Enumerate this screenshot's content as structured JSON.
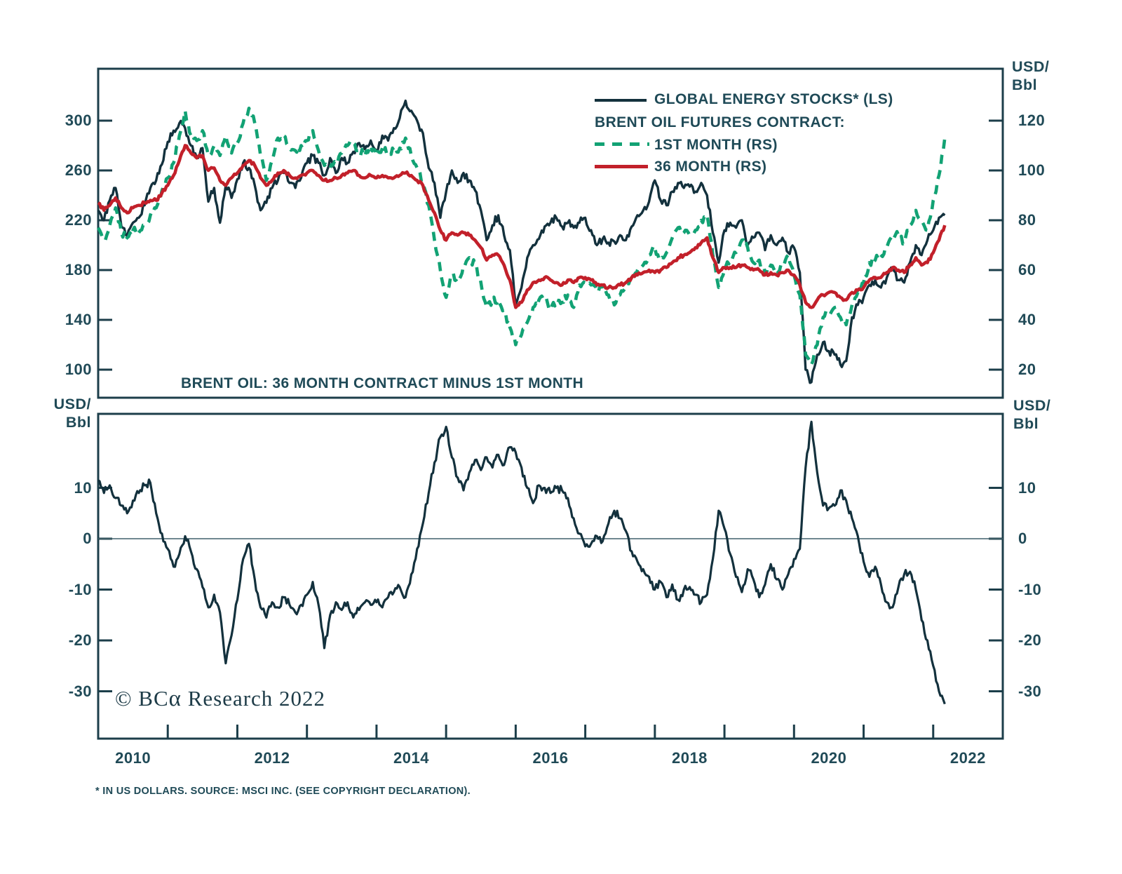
{
  "figure": {
    "unit_label": [
      "USD/",
      "Bbl"
    ],
    "legend": {
      "items": [
        {
          "label": "GLOBAL ENERGY STOCKS* (LS)",
          "swatch": "solid-navy"
        },
        {
          "label": "BRENT OIL FUTURES CONTRACT:",
          "swatch": "none"
        },
        {
          "label": "1ST MONTH (RS)",
          "swatch": "dashed-green"
        },
        {
          "label": "36 MONTH (RS)",
          "swatch": "solid-red"
        }
      ]
    },
    "copyright": {
      "prefix": "© BC",
      "alpha": "α",
      "suffix": " Research 2022"
    },
    "footnote": "* IN US DOLLARS. SOURCE: MSCI INC. (SEE COPYRIGHT DECLARATION)."
  },
  "chart_data": {
    "type": "line",
    "x": {
      "start_year": 2010,
      "step_months": 1,
      "end_year_fraction": 2022.17,
      "axis_range_years": [
        2010,
        2023
      ],
      "tick_years": [
        2011,
        2012,
        2013,
        2014,
        2015,
        2016,
        2017,
        2018,
        2019,
        2020,
        2021,
        2022
      ],
      "label_years": [
        2010,
        2012,
        2014,
        2016,
        2018,
        2020,
        2022
      ]
    },
    "panels": [
      {
        "id": "top",
        "left_axis": {
          "ticks": [
            300,
            260,
            220,
            180,
            140,
            100
          ]
        },
        "right_axis": {
          "unit": "USD/Bbl",
          "ticks": [
            120,
            100,
            80,
            60,
            40,
            20
          ]
        },
        "series": [
          {
            "name": "GLOBAL ENERGY STOCKS (LS)",
            "axis": "left",
            "color": "#13313d",
            "style": "solid",
            "width": 3.4,
            "noise": 3.2,
            "values": [
              228,
              220,
              236,
              246,
              215,
              207,
              218,
              222,
              232,
              246,
              252,
              265,
              283,
              292,
              298,
              294,
              280,
              270,
              278,
              235,
              246,
              218,
              248,
              238,
              253,
              266,
              262,
              248,
              228,
              234,
              246,
              252,
              258,
              250,
              246,
              254,
              266,
              272,
              266,
              256,
              270,
              258,
              270,
              266,
              275,
              282,
              277,
              284,
              276,
              288,
              284,
              294,
              302,
              316,
              308,
              300,
              290,
              262,
              250,
              222,
              243,
              260,
              250,
              258,
              252,
              244,
              228,
              204,
              216,
              224,
              208,
              196,
              152,
              166,
              190,
              200,
              205,
              215,
              218,
              222,
              215,
              218,
              214,
              218,
              222,
              212,
              200,
              205,
              202,
              203,
              208,
              204,
              215,
              224,
              228,
              235,
              252,
              236,
              232,
              243,
              250,
              246,
              247,
              243,
              250,
              240,
              210,
              186,
              212,
              218,
              214,
              220,
              200,
              206,
              210,
              196,
              208,
              200,
              206,
              194,
              198,
              178,
              100,
              90,
              112,
              122,
              115,
              112,
              104,
              107,
              142,
              152,
              158,
              168,
              172,
              166,
              174,
              182,
              172,
              170,
              186,
              200,
              192,
              204,
              212,
              222,
              224
            ]
          },
          {
            "name": "BRENT OIL 1ST MONTH (RS)",
            "axis": "right",
            "color": "#12a274",
            "style": "dashed",
            "width": 4.6,
            "noise": 1.5,
            "values": [
              77,
              72,
              78,
              85,
              75,
              73,
              76,
              75,
              78,
              82,
              85,
              92,
              97,
              103,
              114,
              124,
              114,
              112,
              116,
              106,
              110,
              106,
              114,
              107,
              111,
              119,
              125,
              119,
              106,
              96,
              104,
              113,
              114,
              109,
              108,
              110,
              112,
              116,
              108,
              102,
              101,
              103,
              107,
              110,
              111,
              108,
              106,
              110,
              106,
              109,
              107,
              108,
              109,
              113,
              106,
              101,
              95,
              86,
              72,
              60,
              49,
              58,
              55,
              62,
              65,
              62,
              55,
              45,
              48,
              48,
              44,
              37,
              30,
              34,
              39,
              45,
              48,
              49,
              44,
              48,
              47,
              50,
              45,
              54,
              55,
              54,
              52,
              53,
              50,
              46,
              50,
              53,
              57,
              60,
              62,
              66,
              69,
              64,
              67,
              73,
              77,
              75,
              74,
              76,
              80,
              82,
              66,
              53,
              60,
              64,
              67,
              72,
              69,
              63,
              64,
              59,
              62,
              60,
              62,
              66,
              58,
              50,
              26,
              22,
              30,
              41,
              43,
              45,
              41,
              38,
              46,
              51,
              55,
              63,
              64,
              66,
              69,
              74,
              74,
              71,
              78,
              84,
              80,
              76,
              88,
              98,
              113
            ]
          },
          {
            "name": "BRENT OIL 36 MONTH (RS)",
            "axis": "right",
            "color": "#c2202a",
            "style": "solid",
            "width": 4.6,
            "noise": 0.7,
            "values": [
              87,
              84,
              86,
              89,
              85,
              83,
              85,
              86,
              87,
              88,
              88,
              91,
              94,
              98,
              104,
              110,
              107,
              105,
              106,
              100,
              101,
              96,
              94,
              97,
              99,
              102,
              104,
              102,
              97,
              94,
              96,
              99,
              100,
              98,
              97,
              98,
              99,
              100,
              98,
              96,
              96,
              97,
              98,
              99,
              100,
              98,
              97,
              98,
              97,
              98,
              97,
              97,
              98,
              99,
              98,
              96,
              94,
              88,
              83,
              76,
              72,
              75,
              74,
              75,
              74,
              72,
              69,
              64,
              66,
              66,
              62,
              56,
              45,
              47,
              52,
              55,
              56,
              57,
              56,
              55,
              54,
              56,
              55,
              57,
              57,
              56,
              54,
              54,
              53,
              53,
              54,
              55,
              57,
              58,
              59,
              60,
              59,
              60,
              61,
              63,
              65,
              66,
              67,
              69,
              71,
              73,
              65,
              59,
              61,
              61,
              61,
              62,
              61,
              60,
              60,
              58,
              59,
              58,
              59,
              60,
              58,
              54,
              47,
              45,
              48,
              50,
              51,
              51,
              49,
              48,
              51,
              52,
              53,
              56,
              57,
              57,
              59,
              61,
              60,
              59,
              62,
              65,
              62,
              63,
              67,
              72,
              78
            ]
          }
        ]
      },
      {
        "id": "bottom",
        "title": "BRENT OIL: 36 MONTH CONTRACT MINUS 1ST MONTH",
        "left_axis": {
          "unit": "USD/Bbl",
          "ticks": [
            10,
            0,
            -10,
            -20,
            -30
          ]
        },
        "right_axis": {
          "unit": "USD/Bbl",
          "ticks": [
            10,
            0,
            -10,
            -20,
            -30
          ]
        },
        "zero_line": 0,
        "series": [
          {
            "name": "BRENT 36 MONTH MINUS 1ST MONTH",
            "axis": "left",
            "color": "#13313d",
            "style": "solid",
            "width": 3.2,
            "noise": 0.8,
            "values": [
              11.5,
              9,
              10.5,
              8,
              6.5,
              5,
              7.5,
              9,
              10.5,
              11,
              5,
              1,
              -2,
              -5.5,
              -3,
              0.5,
              -2.5,
              -6,
              -9.5,
              -13.5,
              -11,
              -14.5,
              -24.5,
              -19,
              -12,
              -4,
              -1,
              -8,
              -13.5,
              -15.5,
              -12.5,
              -13.5,
              -11.5,
              -13,
              -14.5,
              -13,
              -11,
              -8.5,
              -13,
              -21.5,
              -15,
              -12.5,
              -14,
              -12.5,
              -15.5,
              -14,
              -12.5,
              -13,
              -12.5,
              -13.5,
              -11.5,
              -10.5,
              -9.5,
              -11.5,
              -7,
              -2,
              3,
              9,
              15,
              20,
              22,
              16,
              12,
              9.5,
              13,
              15.5,
              13.5,
              16,
              14,
              16.5,
              14.5,
              18,
              17,
              14,
              10,
              7,
              10.5,
              10,
              9,
              10,
              9.5,
              8,
              4,
              1,
              -1.5,
              -1,
              0.5,
              -0.5,
              3,
              5.5,
              4,
              1.5,
              -2.5,
              -4.5,
              -6,
              -7.5,
              -10,
              -8.5,
              -11.5,
              -9,
              -12,
              -10,
              -9.5,
              -11,
              -12.5,
              -11,
              -4,
              5.5,
              2,
              -3,
              -7.5,
              -10.5,
              -6,
              -8,
              -11.5,
              -9,
              -5,
              -8,
              -10,
              -7,
              -4,
              -2,
              14,
              23,
              13,
              6.5,
              6,
              6.5,
              9.5,
              7.5,
              4,
              0.5,
              -4.5,
              -7.5,
              -5.5,
              -9,
              -12.5,
              -13.5,
              -9.5,
              -7,
              -6.5,
              -10,
              -16,
              -20,
              -25,
              -30,
              -32.5
            ]
          }
        ]
      }
    ]
  }
}
